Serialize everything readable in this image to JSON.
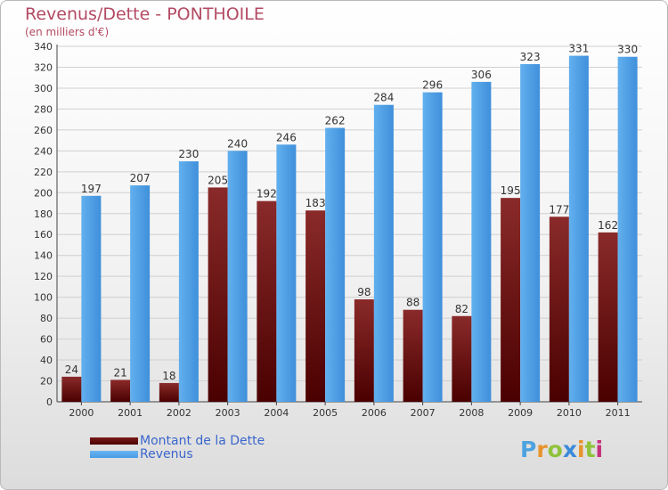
{
  "page": {
    "title": "Revenus/Dette - PONTHOILE",
    "subtitle": "(en milliers d'€)"
  },
  "colors": {
    "debt": "#7a1b1b",
    "revenue": "#4a9be6",
    "title": "#b34a63"
  },
  "logo": {
    "letters": [
      "P",
      "r",
      "o",
      "x",
      "i",
      "t",
      "i"
    ],
    "colors": [
      "#4da3e0",
      "#e8932c",
      "#8fc23a",
      "#3b8ad9",
      "#e8932c",
      "#8fc23a",
      "#c4327a"
    ]
  },
  "chart_data": {
    "type": "bar",
    "title": "Revenus/Dette - PONTHOILE",
    "subtitle": "(en milliers d'€)",
    "categories": [
      "2000",
      "2001",
      "2002",
      "2003",
      "2004",
      "2005",
      "2006",
      "2007",
      "2008",
      "2009",
      "2010",
      "2011"
    ],
    "series": [
      {
        "name": "Montant de la Dette",
        "color": "#7a1b1b",
        "values": [
          24,
          21,
          18,
          205,
          192,
          183,
          98,
          88,
          82,
          195,
          177,
          162
        ]
      },
      {
        "name": "Revenus",
        "color": "#4a9be6",
        "values": [
          197,
          207,
          230,
          240,
          246,
          262,
          284,
          296,
          306,
          323,
          331,
          330
        ]
      }
    ],
    "ylim": [
      0,
      340
    ],
    "yticks": [
      0,
      20,
      40,
      60,
      80,
      100,
      120,
      140,
      160,
      180,
      200,
      220,
      240,
      260,
      280,
      300,
      320,
      340
    ],
    "grid": true,
    "legend_position": "bottom-left"
  }
}
